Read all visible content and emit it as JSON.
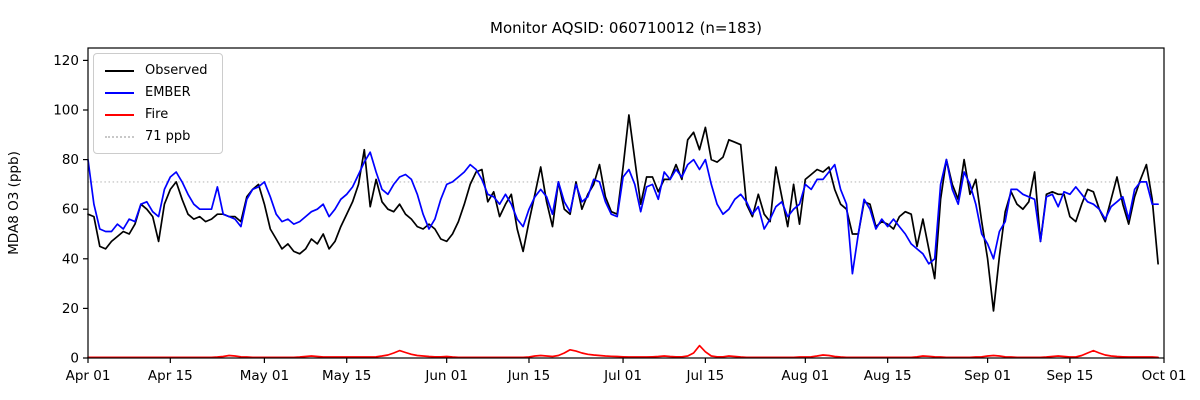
{
  "chart_data": {
    "type": "line",
    "title": "Monitor AQSID: 060710012 (n=183)",
    "xlabel": "",
    "ylabel": "MDA8 O3 (ppb)",
    "ylim": [
      0,
      125
    ],
    "yticks": [
      0,
      20,
      40,
      60,
      80,
      100,
      120
    ],
    "x_total_days": 183,
    "xticks": [
      {
        "day": 0,
        "label": "Apr 01"
      },
      {
        "day": 14,
        "label": "Apr 15"
      },
      {
        "day": 30,
        "label": "May 01"
      },
      {
        "day": 44,
        "label": "May 15"
      },
      {
        "day": 61,
        "label": "Jun 01"
      },
      {
        "day": 75,
        "label": "Jun 15"
      },
      {
        "day": 91,
        "label": "Jul 01"
      },
      {
        "day": 105,
        "label": "Jul 15"
      },
      {
        "day": 122,
        "label": "Aug 01"
      },
      {
        "day": 136,
        "label": "Aug 15"
      },
      {
        "day": 153,
        "label": "Sep 01"
      },
      {
        "day": 167,
        "label": "Sep 15"
      },
      {
        "day": 183,
        "label": "Oct 01"
      }
    ],
    "threshold": {
      "value": 71,
      "label": "71 ppb",
      "color": "#c8c8c8"
    },
    "grid": false,
    "legend_position": "upper left",
    "series": [
      {
        "name": "Observed",
        "color": "#000000",
        "values": [
          58,
          57,
          45,
          44,
          47,
          49,
          51,
          50,
          54,
          62,
          60,
          57,
          47,
          62,
          68,
          71,
          64,
          58,
          56,
          57,
          55,
          56,
          58,
          58,
          57,
          57,
          55,
          65,
          68,
          70,
          62,
          52,
          48,
          44,
          46,
          43,
          42,
          44,
          48,
          46,
          50,
          44,
          47,
          53,
          58,
          63,
          70,
          84,
          61,
          72,
          63,
          60,
          59,
          62,
          58,
          56,
          53,
          52,
          54,
          52,
          48,
          47,
          50,
          55,
          62,
          70,
          75,
          76,
          63,
          67,
          57,
          62,
          66,
          52,
          43,
          55,
          66,
          77,
          63,
          53,
          71,
          60,
          58,
          71,
          60,
          66,
          70,
          78,
          65,
          59,
          58,
          77,
          98,
          80,
          62,
          73,
          73,
          67,
          72,
          72,
          78,
          72,
          88,
          91,
          84,
          93,
          80,
          79,
          81,
          88,
          87,
          86,
          62,
          57,
          66,
          58,
          55,
          77,
          65,
          53,
          70,
          54,
          72,
          74,
          76,
          75,
          77,
          68,
          62,
          60,
          50,
          50,
          63,
          62,
          53,
          55,
          54,
          52,
          57,
          59,
          58,
          45,
          56,
          44,
          32,
          64,
          80,
          70,
          64,
          80,
          66,
          72,
          55,
          40,
          19,
          41,
          59,
          67,
          62,
          60,
          63,
          75,
          47,
          66,
          67,
          66,
          66,
          57,
          55,
          62,
          68,
          67,
          60,
          55,
          64,
          73,
          62,
          54,
          65,
          72,
          78,
          64,
          38
        ]
      },
      {
        "name": "EMBER",
        "color": "#0000ff",
        "values": [
          80,
          62,
          52,
          51,
          51,
          54,
          52,
          56,
          55,
          62,
          63,
          59,
          57,
          68,
          73,
          75,
          71,
          66,
          62,
          60,
          60,
          60,
          69,
          58,
          57,
          56,
          53,
          64,
          68,
          69,
          71,
          65,
          58,
          55,
          56,
          54,
          55,
          57,
          59,
          60,
          62,
          57,
          60,
          64,
          66,
          69,
          74,
          79,
          83,
          75,
          68,
          66,
          70,
          73,
          74,
          72,
          66,
          58,
          52,
          56,
          64,
          70,
          71,
          73,
          75,
          78,
          76,
          72,
          66,
          65,
          62,
          66,
          62,
          56,
          53,
          60,
          65,
          68,
          65,
          58,
          71,
          63,
          59,
          70,
          63,
          65,
          72,
          71,
          63,
          58,
          57,
          73,
          76,
          70,
          59,
          69,
          70,
          64,
          75,
          72,
          76,
          73,
          78,
          80,
          76,
          80,
          70,
          62,
          58,
          60,
          64,
          66,
          63,
          58,
          61,
          52,
          56,
          61,
          63,
          57,
          60,
          62,
          70,
          68,
          72,
          72,
          75,
          78,
          68,
          62,
          34,
          50,
          64,
          60,
          52,
          56,
          53,
          56,
          53,
          50,
          46,
          44,
          42,
          38,
          40,
          70,
          80,
          68,
          62,
          75,
          70,
          62,
          50,
          46,
          40,
          51,
          55,
          68,
          68,
          66,
          65,
          64,
          47,
          65,
          66,
          61,
          67,
          66,
          69,
          66,
          63,
          62,
          60,
          56,
          61,
          63,
          65,
          56,
          68,
          71,
          71,
          62,
          62
        ]
      },
      {
        "name": "Fire",
        "color": "#ff0000",
        "values": [
          0.3,
          0.3,
          0.3,
          0.3,
          0.3,
          0.3,
          0.3,
          0.3,
          0.3,
          0.3,
          0.3,
          0.3,
          0.3,
          0.3,
          0.3,
          0.3,
          0.3,
          0.3,
          0.3,
          0.3,
          0.3,
          0.3,
          0.4,
          0.6,
          1.0,
          0.8,
          0.5,
          0.4,
          0.3,
          0.3,
          0.3,
          0.3,
          0.3,
          0.3,
          0.3,
          0.3,
          0.4,
          0.6,
          0.8,
          0.6,
          0.4,
          0.4,
          0.4,
          0.4,
          0.4,
          0.4,
          0.4,
          0.4,
          0.4,
          0.5,
          0.8,
          1.2,
          2.0,
          3.0,
          2.2,
          1.5,
          1.0,
          0.8,
          0.6,
          0.5,
          0.5,
          0.6,
          0.4,
          0.3,
          0.3,
          0.3,
          0.3,
          0.3,
          0.3,
          0.3,
          0.3,
          0.3,
          0.3,
          0.3,
          0.3,
          0.4,
          0.8,
          1.0,
          0.8,
          0.6,
          1.0,
          2.0,
          3.3,
          2.8,
          2.0,
          1.5,
          1.2,
          1.0,
          0.8,
          0.7,
          0.6,
          0.5,
          0.4,
          0.4,
          0.4,
          0.4,
          0.5,
          0.6,
          0.8,
          0.6,
          0.5,
          0.5,
          0.8,
          2.0,
          5.0,
          2.5,
          0.8,
          0.5,
          0.5,
          0.8,
          0.6,
          0.4,
          0.3,
          0.3,
          0.3,
          0.3,
          0.3,
          0.3,
          0.3,
          0.3,
          0.3,
          0.4,
          0.4,
          0.5,
          0.8,
          1.2,
          1.0,
          0.6,
          0.4,
          0.3,
          0.3,
          0.3,
          0.3,
          0.3,
          0.3,
          0.3,
          0.3,
          0.3,
          0.3,
          0.3,
          0.3,
          0.5,
          0.8,
          0.7,
          0.5,
          0.4,
          0.3,
          0.3,
          0.3,
          0.3,
          0.3,
          0.4,
          0.5,
          0.8,
          1.0,
          0.8,
          0.5,
          0.4,
          0.3,
          0.3,
          0.3,
          0.3,
          0.3,
          0.4,
          0.6,
          0.8,
          0.6,
          0.4,
          0.4,
          1.0,
          2.0,
          3.0,
          2.0,
          1.2,
          0.8,
          0.6,
          0.5,
          0.4,
          0.4,
          0.4,
          0.4,
          0.4,
          0.3
        ]
      }
    ]
  },
  "legend": {
    "items": [
      {
        "label": "Observed",
        "color": "#000000",
        "style": "solid"
      },
      {
        "label": "EMBER",
        "color": "#0000ff",
        "style": "solid"
      },
      {
        "label": "Fire",
        "color": "#ff0000",
        "style": "solid"
      },
      {
        "label": "71 ppb",
        "color": "#c8c8c8",
        "style": "dotted"
      }
    ]
  }
}
